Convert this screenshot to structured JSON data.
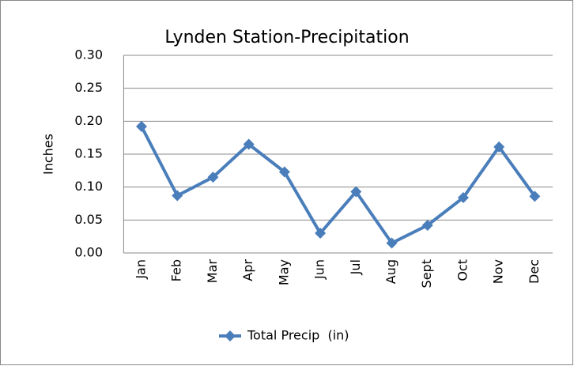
{
  "chart_data": {
    "type": "line",
    "title": "Lynden Station-Precipitation",
    "y_label": "Inches",
    "categories": [
      "Jan",
      "Feb",
      "Mar",
      "Apr",
      "May",
      "Jun",
      "Jul",
      "Aug",
      "Sept",
      "Oct",
      "Nov",
      "Dec"
    ],
    "series": [
      {
        "name": "Total Precip  (in)",
        "color": "#4a7ebb",
        "values": [
          0.192,
          0.087,
          0.115,
          0.165,
          0.123,
          0.03,
          0.093,
          0.015,
          0.042,
          0.084,
          0.161,
          0.086
        ]
      }
    ],
    "ylim": [
      0,
      0.3
    ],
    "yticks": [
      {
        "value": 0,
        "label": "0.00"
      },
      {
        "value": 0.05,
        "label": "0.05"
      },
      {
        "value": 0.1,
        "label": "0.10"
      },
      {
        "value": 0.15,
        "label": "0.15"
      },
      {
        "value": 0.2,
        "label": "0.20"
      },
      {
        "value": 0.25,
        "label": "0.25"
      },
      {
        "value": 0.3,
        "label": "0.30"
      }
    ],
    "grid": true,
    "legend": "bottom"
  }
}
